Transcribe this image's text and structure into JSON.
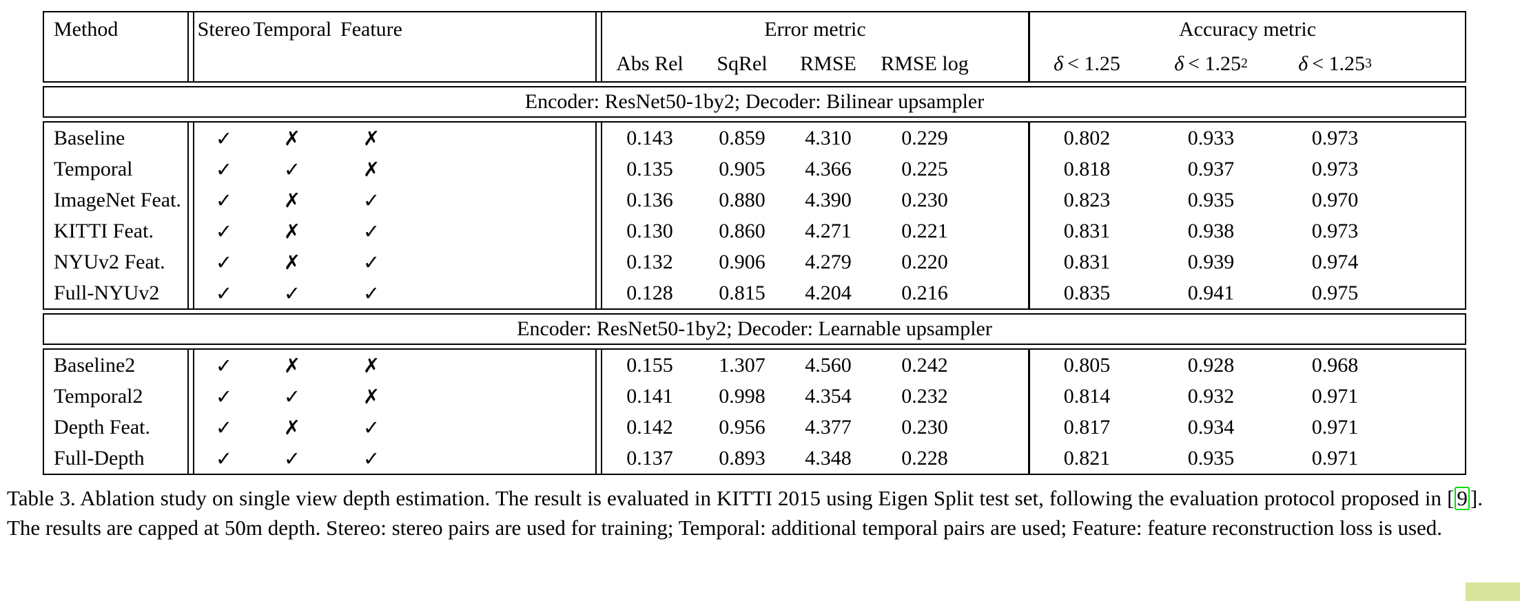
{
  "colors": {
    "text": "#000000",
    "background": "#ffffff",
    "citation_box": "#00dd00",
    "corner_artifact": "#d9e59d"
  },
  "table": {
    "check_glyph": "✓",
    "cross_glyph": "✗",
    "columns": {
      "method_header": "Method",
      "check_headers": [
        "Stereo",
        "Temporal",
        "Feature"
      ],
      "error_group": "Error metric",
      "error_headers": [
        "Abs Rel",
        "SqRel",
        "RMSE",
        "RMSE log"
      ],
      "accuracy_group": "Accuracy metric",
      "accuracy_headers": [
        {
          "delta": "δ",
          "rel": "< 1.25",
          "sup": ""
        },
        {
          "delta": "δ",
          "rel": "< 1.25",
          "sup": "2"
        },
        {
          "delta": "δ",
          "rel": "< 1.25",
          "sup": "3"
        }
      ]
    },
    "sections": [
      {
        "title": "Encoder: ResNet50-1by2; Decoder: Bilinear upsampler",
        "rows": [
          {
            "method": "Baseline",
            "stereo": true,
            "temporal": false,
            "feature": false,
            "values": [
              "0.143",
              "0.859",
              "4.310",
              "0.229",
              "0.802",
              "0.933",
              "0.973"
            ]
          },
          {
            "method": "Temporal",
            "stereo": true,
            "temporal": true,
            "feature": false,
            "values": [
              "0.135",
              "0.905",
              "4.366",
              "0.225",
              "0.818",
              "0.937",
              "0.973"
            ]
          },
          {
            "method": "ImageNet Feat.",
            "stereo": true,
            "temporal": false,
            "feature": true,
            "values": [
              "0.136",
              "0.880",
              "4.390",
              "0.230",
              "0.823",
              "0.935",
              "0.970"
            ]
          },
          {
            "method": "KITTI Feat.",
            "stereo": true,
            "temporal": false,
            "feature": true,
            "values": [
              "0.130",
              "0.860",
              "4.271",
              "0.221",
              "0.831",
              "0.938",
              "0.973"
            ]
          },
          {
            "method": "NYUv2 Feat.",
            "stereo": true,
            "temporal": false,
            "feature": true,
            "values": [
              "0.132",
              "0.906",
              "4.279",
              "0.220",
              "0.831",
              "0.939",
              "0.974"
            ]
          },
          {
            "method": "Full-NYUv2",
            "stereo": true,
            "temporal": true,
            "feature": true,
            "values": [
              "0.128",
              "0.815",
              "4.204",
              "0.216",
              "0.835",
              "0.941",
              "0.975"
            ]
          }
        ]
      },
      {
        "title": "Encoder: ResNet50-1by2; Decoder: Learnable upsampler",
        "rows": [
          {
            "method": "Baseline2",
            "stereo": true,
            "temporal": false,
            "feature": false,
            "values": [
              "0.155",
              "1.307",
              "4.560",
              "0.242",
              "0.805",
              "0.928",
              "0.968"
            ]
          },
          {
            "method": "Temporal2",
            "stereo": true,
            "temporal": true,
            "feature": false,
            "values": [
              "0.141",
              "0.998",
              "4.354",
              "0.232",
              "0.814",
              "0.932",
              "0.971"
            ]
          },
          {
            "method": "Depth Feat.",
            "stereo": true,
            "temporal": false,
            "feature": true,
            "values": [
              "0.142",
              "0.956",
              "4.377",
              "0.230",
              "0.817",
              "0.934",
              "0.971"
            ]
          },
          {
            "method": "Full-Depth",
            "stereo": true,
            "temporal": true,
            "feature": true,
            "values": [
              "0.137",
              "0.893",
              "4.348",
              "0.228",
              "0.821",
              "0.935",
              "0.971"
            ]
          }
        ]
      }
    ]
  },
  "caption": {
    "prefix": "Table 3. Ablation study on single view depth estimation. The result is evaluated in KITTI 2015 using Eigen Split test set, following the evaluation protocol proposed in [",
    "citation": "9",
    "suffix": "]. The results are capped at 50m depth. Stereo: stereo pairs are used for training; Temporal: additional temporal pairs are used; Feature: feature reconstruction loss is used."
  }
}
